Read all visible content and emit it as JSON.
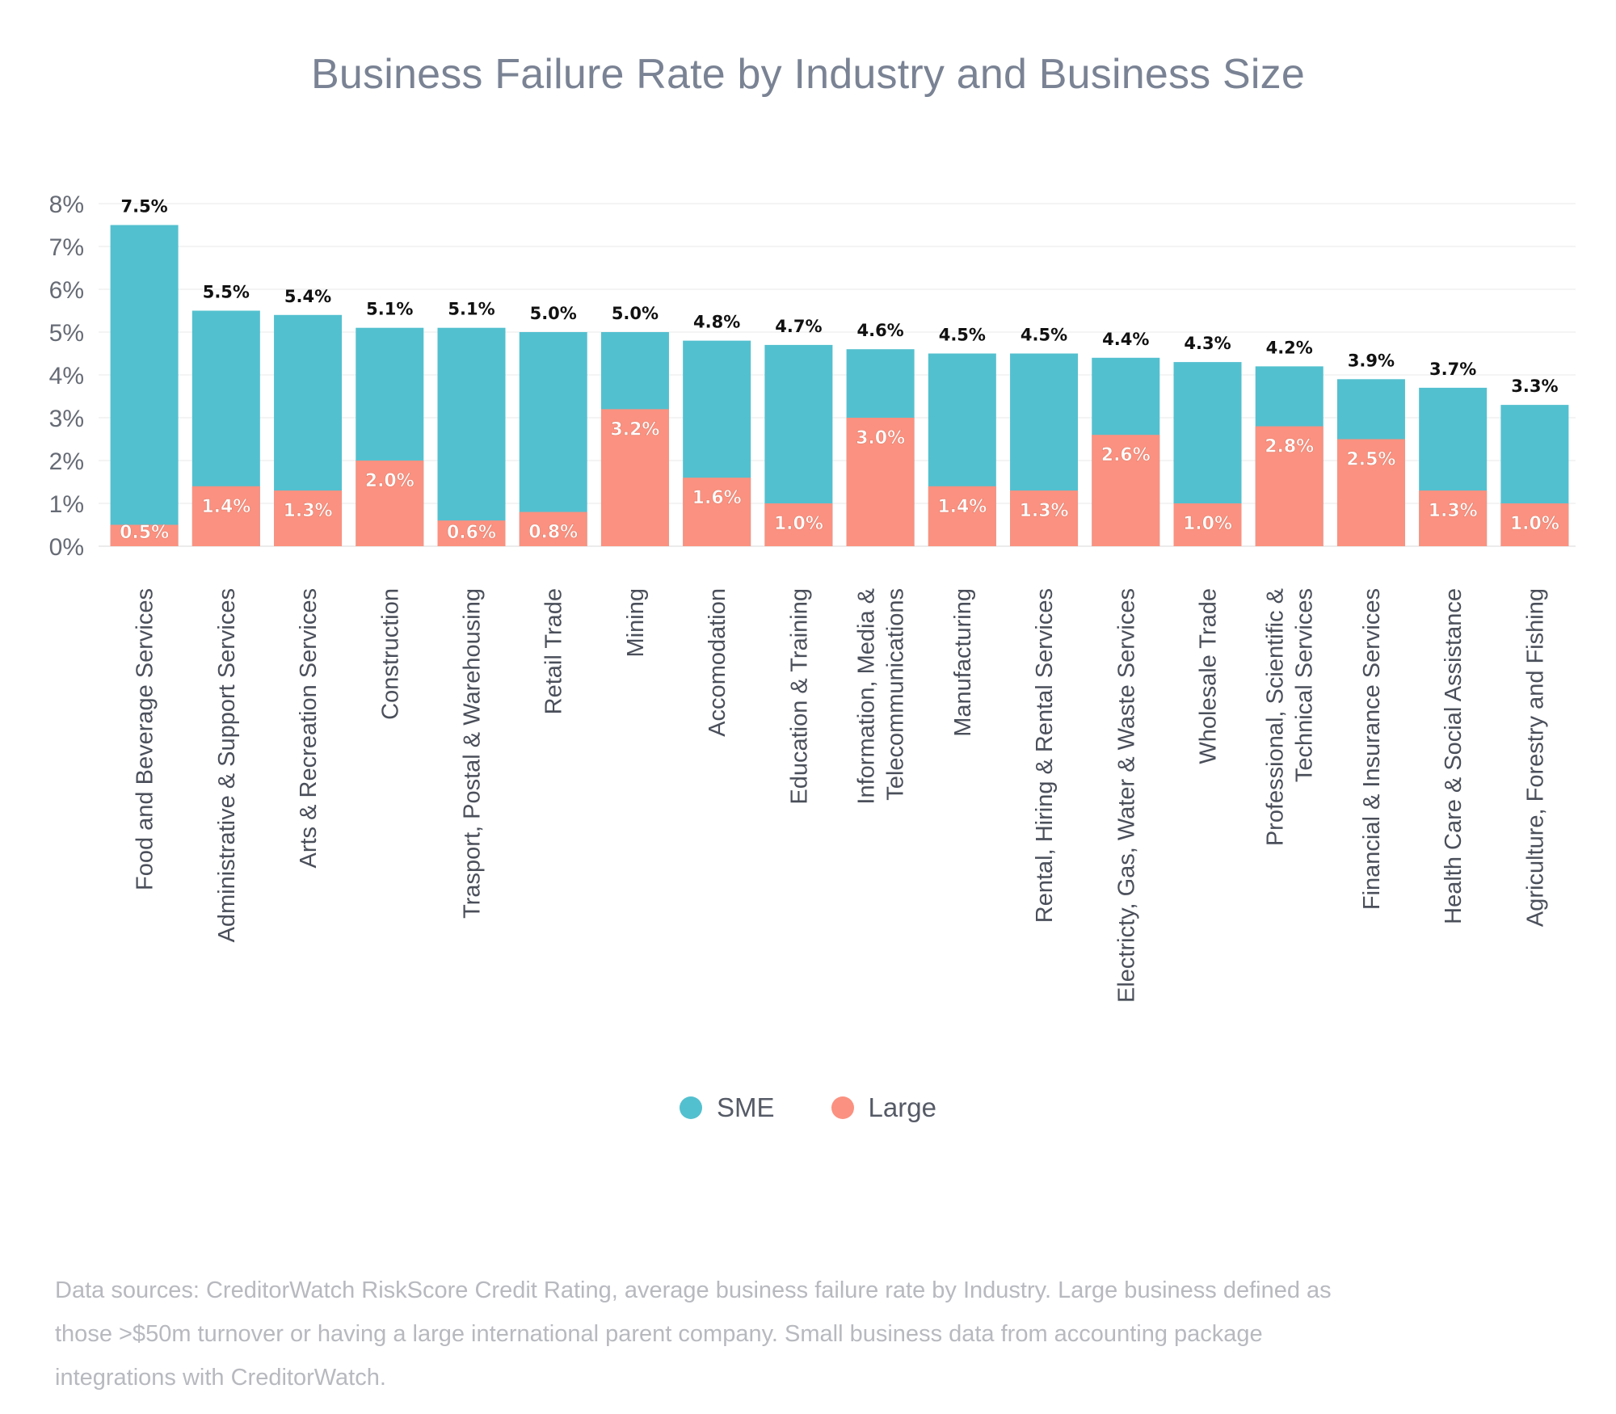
{
  "chart_data": {
    "type": "bar",
    "title": "Business Failure Rate by Industry and Business Size",
    "xlabel": "",
    "ylabel": "",
    "ylim": [
      0,
      8
    ],
    "yticks": [
      "0%",
      "1%",
      "2%",
      "3%",
      "4%",
      "5%",
      "6%",
      "7%",
      "8%"
    ],
    "grid": true,
    "legend_position": "bottom-center",
    "overlap": true,
    "categories": [
      "Food and Beverage Services",
      "Administrative & Support Services",
      "Arts & Recreation Services",
      "Construction",
      "Trasport, Postal & Warehousing",
      "Retail Trade",
      "Mining",
      "Accomodation",
      "Education & Training",
      "Information, Media & Telecommunications",
      "Manufacturing",
      "Rental, Hiring & Rental Services",
      "Electricty, Gas, Water & Waste Services",
      "Wholesale Trade",
      "Professional, Scientific & Technical Services",
      "Financial & Insurance Services",
      "Health Care & Social Assistance",
      "Agriculture, Forestry and Fishing"
    ],
    "category_lines": [
      [
        "Food and Beverage Services"
      ],
      [
        "Administrative & Support Services"
      ],
      [
        "Arts & Recreation Services"
      ],
      [
        "Construction"
      ],
      [
        "Trasport, Postal & Warehousing"
      ],
      [
        "Retail Trade"
      ],
      [
        "Mining"
      ],
      [
        "Accomodation"
      ],
      [
        "Education & Training"
      ],
      [
        "Information, Media &",
        "Telecommunications"
      ],
      [
        "Manufacturing"
      ],
      [
        "Rental, Hiring & Rental Services"
      ],
      [
        "Electricty, Gas, Water & Waste Services"
      ],
      [
        "Wholesale Trade"
      ],
      [
        "Professional, Scientific &",
        "Technical Services"
      ],
      [
        "Financial & Insurance Services"
      ],
      [
        "Health Care & Social Assistance"
      ],
      [
        "Agriculture, Forestry and Fishing"
      ]
    ],
    "series": [
      {
        "name": "SME",
        "color": "#53c0cf",
        "values": [
          7.5,
          5.5,
          5.4,
          5.1,
          5.1,
          5.0,
          5.0,
          4.8,
          4.7,
          4.6,
          4.5,
          4.5,
          4.4,
          4.3,
          4.2,
          3.9,
          3.7,
          3.3
        ],
        "labels": [
          "7.5%",
          "5.5%",
          "5.4%",
          "5.1%",
          "5.1%",
          "5.0%",
          "5.0%",
          "4.8%",
          "4.7%",
          "4.6%",
          "4.5%",
          "4.5%",
          "4.4%",
          "4.3%",
          "4.2%",
          "3.9%",
          "3.7%",
          "3.3%"
        ]
      },
      {
        "name": "Large",
        "color": "#fb9180",
        "values": [
          0.5,
          1.4,
          1.3,
          2.0,
          0.6,
          0.8,
          3.2,
          1.6,
          1.0,
          3.0,
          1.4,
          1.3,
          2.6,
          1.0,
          2.8,
          2.5,
          1.3,
          1.0
        ],
        "labels": [
          "0.5%",
          "1.4%",
          "1.3%",
          "2.0%",
          "0.6%",
          "0.8%",
          "3.2%",
          "1.6%",
          "1.0%",
          "3.0%",
          "1.4%",
          "1.3%",
          "2.6%",
          "1.0%",
          "2.8%",
          "2.5%",
          "1.3%",
          "1.0%"
        ]
      }
    ]
  },
  "legend": {
    "sme_label": "SME",
    "large_label": "Large"
  },
  "footnote": "Data sources: CreditorWatch RiskScore Credit Rating, average business failure rate by Industry. Large business defined as those >$50m turnover or having a large international parent company. Small business data from accounting package integrations with CreditorWatch."
}
